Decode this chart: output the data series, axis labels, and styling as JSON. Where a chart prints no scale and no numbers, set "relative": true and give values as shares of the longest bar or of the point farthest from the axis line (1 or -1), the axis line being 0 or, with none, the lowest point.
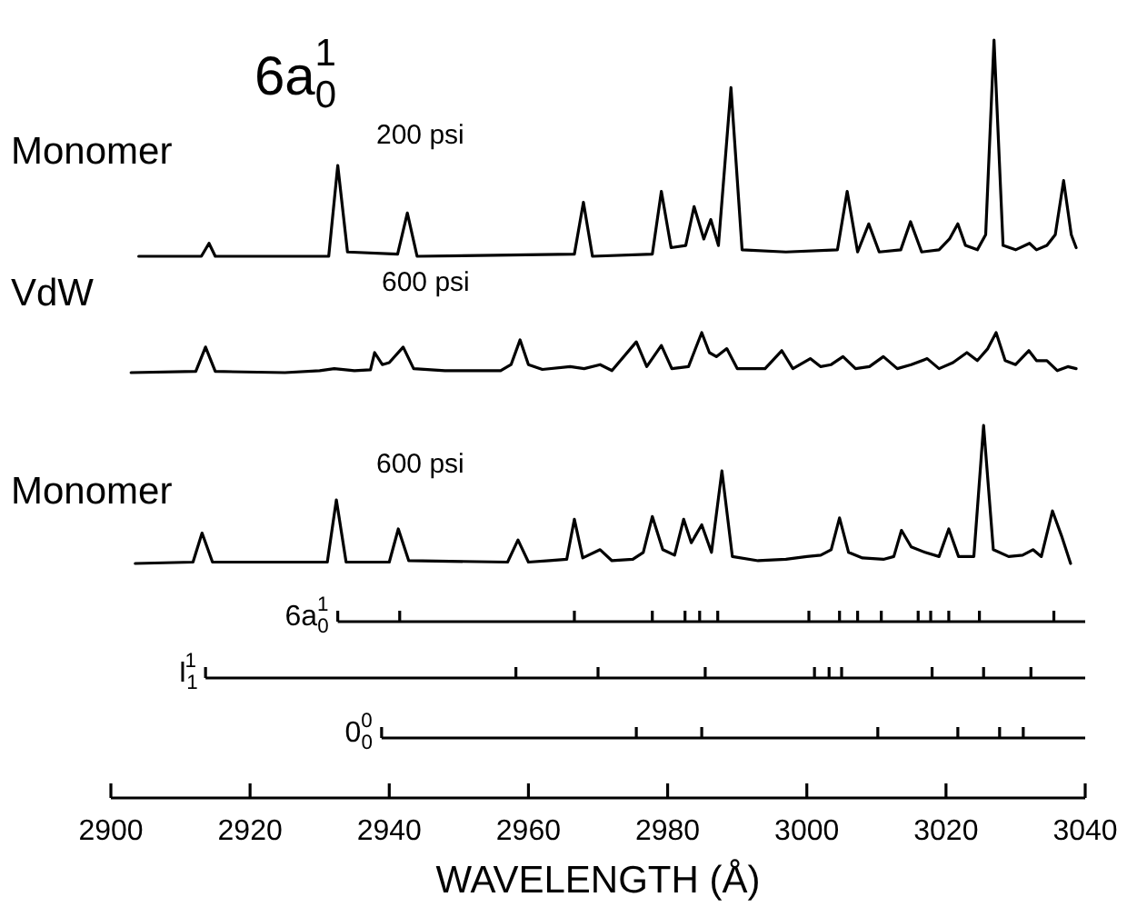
{
  "chart_data": [
    {
      "type": "line",
      "title": "6a$_{0}$$^{1}$",
      "annotations": [
        "200 psi"
      ],
      "relative": true,
      "xlim": [
        2900,
        3040
      ],
      "tick_labels": false,
      "series": [
        {
          "name": "Monomer",
          "color": "#000000",
          "x": [
            2904,
            2913,
            2914.1,
            2915,
            2931.3,
            2932.6,
            2934,
            2941.2,
            2942.6,
            2944,
            2966.6,
            2967.9,
            2969.2,
            2977.8,
            2979.1,
            2980.5,
            2982.6,
            2983.8,
            2985.2,
            2986.2,
            2987.3,
            2989.1,
            2990.7,
            2997,
            3004.4,
            3005.8,
            3007.3,
            3008.9,
            3010.4,
            3013.5,
            3014.9,
            3016.5,
            3019,
            3020.5,
            3021.7,
            3022.8,
            3024.5,
            3025.7,
            3026.9,
            3028.2,
            3030,
            3032,
            3033,
            3034.5,
            3035.7,
            3036.9,
            3038,
            3038.7
          ],
          "values": [
            0,
            0,
            0.06,
            0,
            0,
            0.42,
            0.02,
            0.01,
            0.2,
            0,
            0.01,
            0.25,
            0,
            0.01,
            0.3,
            0.04,
            0.05,
            0.23,
            0.08,
            0.17,
            0.05,
            0.78,
            0.03,
            0.02,
            0.03,
            0.3,
            0.02,
            0.15,
            0.02,
            0.03,
            0.16,
            0.02,
            0.03,
            0.08,
            0.15,
            0.05,
            0.03,
            0.1,
            1,
            0.05,
            0.03,
            0.06,
            0.03,
            0.05,
            0.1,
            0.35,
            0.1,
            0.04
          ]
        }
      ]
    },
    {
      "type": "line",
      "annotations": [
        "600 psi"
      ],
      "relative": true,
      "xlim": [
        2900,
        3040
      ],
      "tick_labels": false,
      "series": [
        {
          "name": "VdW",
          "color": "#000000",
          "x": [
            2902.9,
            2912.2,
            2913.6,
            2915,
            2925,
            2930,
            2932.1,
            2935,
            2937.3,
            2937.9,
            2939,
            2940,
            2942,
            2943.5,
            2948,
            2956,
            2957.5,
            2958.8,
            2960,
            2962,
            2966,
            2968,
            2970.3,
            2972,
            2975.5,
            2977,
            2979.1,
            2980.6,
            2983,
            2984.9,
            2986,
            2987,
            2988.5,
            2990,
            2994,
            2996.4,
            2998,
            3000.5,
            3002,
            3003.5,
            3005.2,
            3007,
            3009,
            3011,
            3013,
            3015,
            3017.3,
            3019,
            3021,
            3023,
            3024.5,
            3026,
            3027.2,
            3028.5,
            3030,
            3031.9,
            3033,
            3034.5,
            3036,
            3037.5,
            3038.7
          ],
          "values": [
            0,
            0.03,
            0.64,
            0.03,
            0,
            0.05,
            0.1,
            0.05,
            0.07,
            0.5,
            0.2,
            0.25,
            0.64,
            0.1,
            0.05,
            0.05,
            0.2,
            0.82,
            0.2,
            0.08,
            0.15,
            0.1,
            0.2,
            0.05,
            0.77,
            0.15,
            0.68,
            0.1,
            0.15,
            1,
            0.5,
            0.4,
            0.6,
            0.1,
            0.1,
            0.55,
            0.1,
            0.35,
            0.15,
            0.2,
            0.4,
            0.1,
            0.15,
            0.4,
            0.1,
            0.2,
            0.35,
            0.1,
            0.25,
            0.5,
            0.3,
            0.6,
            1,
            0.3,
            0.2,
            0.55,
            0.3,
            0.3,
            0.05,
            0.15,
            0.1
          ]
        }
      ]
    },
    {
      "type": "line",
      "annotations": [
        "600 psi"
      ],
      "relative": true,
      "xlim": [
        2900,
        3040
      ],
      "tick_labels": false,
      "series": [
        {
          "name": "Monomer",
          "color": "#000000",
          "x": [
            2903.5,
            2911.8,
            2913.1,
            2914.6,
            2931.1,
            2932.4,
            2933.8,
            2940,
            2941.3,
            2942.8,
            2957,
            2958.5,
            2960,
            2963,
            2965.5,
            2966.6,
            2967.8,
            2970.3,
            2972,
            2975,
            2976.5,
            2977.8,
            2979.3,
            2981,
            2982.3,
            2983.4,
            2984.9,
            2986.3,
            2987.8,
            2989.3,
            2993,
            2997,
            3000,
            3002,
            3003.5,
            3004.7,
            3006,
            3008,
            3011,
            3012.5,
            3013.6,
            3015,
            3017,
            3019,
            3020.4,
            3021.8,
            3024,
            3025.4,
            3026.8,
            3029,
            3031,
            3032.5,
            3033.7,
            3035.3,
            3036.6,
            3037.9
          ],
          "values": [
            0,
            0.01,
            0.22,
            0.01,
            0.01,
            0.46,
            0.01,
            0.01,
            0.25,
            0.02,
            0.01,
            0.17,
            0.01,
            0.02,
            0.03,
            0.32,
            0.04,
            0.1,
            0.02,
            0.03,
            0.08,
            0.34,
            0.1,
            0.06,
            0.32,
            0.15,
            0.28,
            0.08,
            0.67,
            0.05,
            0.02,
            0.03,
            0.05,
            0.06,
            0.1,
            0.33,
            0.08,
            0.04,
            0.03,
            0.05,
            0.24,
            0.12,
            0.08,
            0.05,
            0.25,
            0.05,
            0.05,
            1,
            0.1,
            0.05,
            0.06,
            0.1,
            0.05,
            0.38,
            0.2,
            0
          ]
        }
      ]
    },
    {
      "type": "bar",
      "relative": true,
      "xlim": [
        2900,
        3040
      ],
      "tick_labels": false,
      "series": [
        {
          "name": "6a$_{0}$$^{1}$",
          "color": "#000000",
          "x": [
            2932.6,
            2941.5,
            2966.6,
            2977.8,
            2982.5,
            2984.6,
            2987.2,
            3000.3,
            3004.7,
            3007.3,
            3010.7,
            3016,
            3017.8,
            3020.4,
            3024.8,
            3035.5
          ],
          "values": [
            1,
            1,
            1,
            1,
            1,
            1,
            1,
            1,
            1,
            1,
            1,
            1,
            1,
            1,
            1,
            1
          ]
        }
      ]
    },
    {
      "type": "bar",
      "relative": true,
      "xlim": [
        2900,
        3040
      ],
      "tick_labels": false,
      "series": [
        {
          "name": "I$_{1}$$^{1}$",
          "color": "#000000",
          "x": [
            2913.6,
            2958.2,
            2970,
            2985.4,
            3001.1,
            3003.2,
            3005,
            3018,
            3025.4,
            3032.2
          ],
          "values": [
            1,
            1,
            1,
            1,
            1,
            1,
            1,
            1,
            1,
            1
          ]
        }
      ]
    },
    {
      "type": "bar",
      "relative": true,
      "xlim": [
        2900,
        3040
      ],
      "xticks": [
        2900,
        2920,
        2940,
        2960,
        2980,
        3000,
        3020,
        3040
      ],
      "tick_labels": "x",
      "xlabel": "WAVELENGTH (Å)",
      "series": [
        {
          "name": "0$_{0}$$^{0}$",
          "color": "#000000",
          "x": [
            2938.9,
            2975.5,
            2984.9,
            3010.2,
            3021.7,
            3027.7,
            3031.1
          ],
          "values": [
            1,
            1,
            1,
            1,
            1,
            1,
            1
          ]
        }
      ]
    }
  ]
}
